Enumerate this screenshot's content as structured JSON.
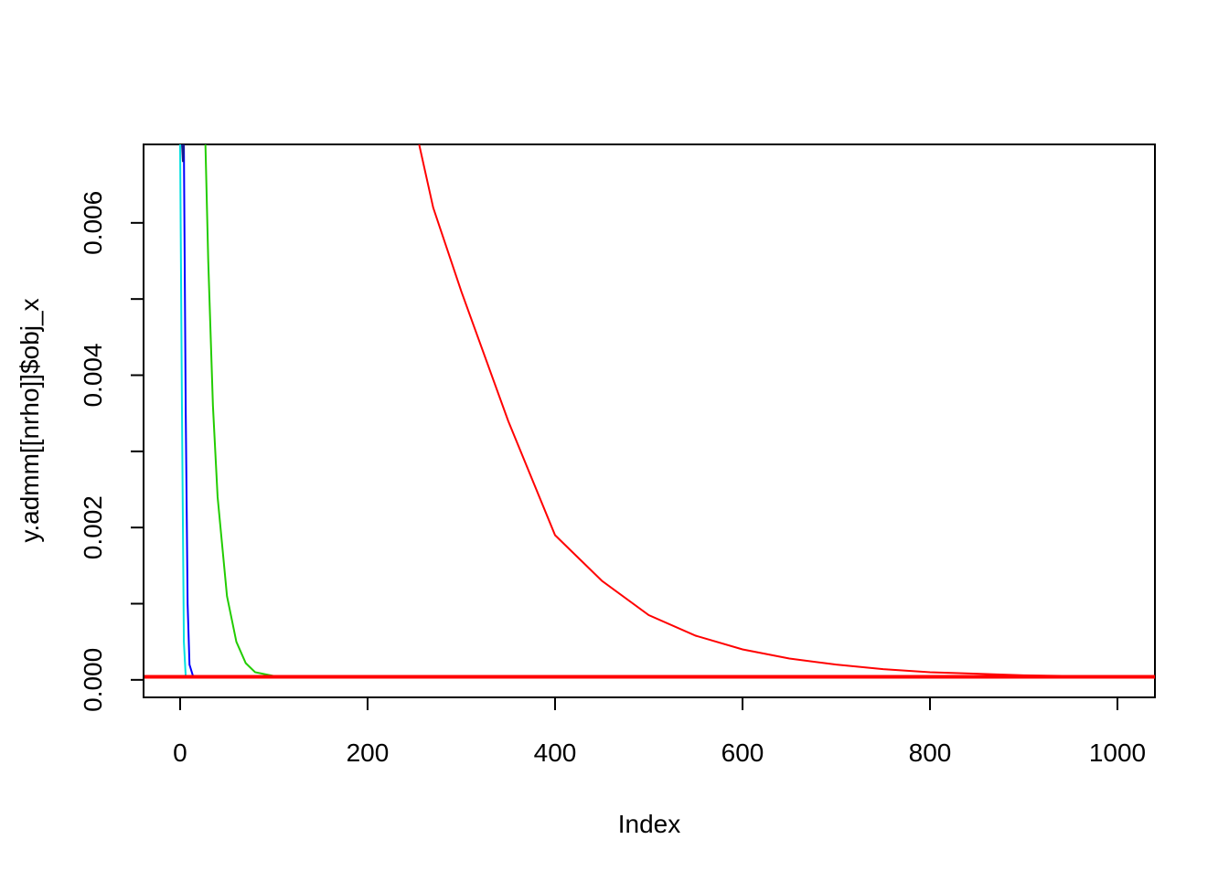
{
  "chart_data": {
    "type": "line",
    "x_label": "Index",
    "y_label": "y.admm[[nrho]]$obj_x",
    "xlim": [
      -39,
      1040
    ],
    "ylim": [
      -0.00023,
      0.00703
    ],
    "xticks": [
      0,
      200,
      400,
      600,
      800,
      1000
    ],
    "yticks": [
      {
        "value": 0,
        "label": "0.000"
      },
      {
        "value": 0.002,
        "label": "0.002"
      },
      {
        "value": 0.004,
        "label": "0.004"
      },
      {
        "value": 0.006,
        "label": "0.006"
      }
    ],
    "yminor_ticks": [
      0.001,
      0.003,
      0.005
    ],
    "series": [
      {
        "color": "#00e0e0",
        "x": [
          0,
          2,
          4,
          6
        ],
        "y": [
          0.00703,
          0.0035,
          0.0005,
          4e-05
        ]
      },
      {
        "color": "#0000ff",
        "x": [
          4,
          6,
          8,
          10,
          14
        ],
        "y": [
          0.00703,
          0.0035,
          0.001,
          0.0002,
          4e-05
        ]
      },
      {
        "color": "#1a1a8c",
        "x": [
          2,
          3,
          4
        ],
        "y": [
          0.00703,
          0.0068,
          0.00703
        ]
      },
      {
        "color": "#22cc00",
        "x": [
          27,
          30,
          35,
          40,
          50,
          60,
          70,
          80,
          100,
          110
        ],
        "y": [
          0.00703,
          0.0055,
          0.0036,
          0.0024,
          0.0011,
          0.0005,
          0.00022,
          0.0001,
          5e-05,
          4e-05
        ]
      },
      {
        "color": "#ff0000",
        "x": [
          255,
          270,
          300,
          350,
          400,
          450,
          500,
          550,
          600,
          650,
          700,
          750,
          800,
          850,
          900,
          950,
          1000,
          1040
        ],
        "y": [
          0.00703,
          0.0062,
          0.0051,
          0.0034,
          0.0019,
          0.0013,
          0.00085,
          0.00058,
          0.0004,
          0.00028,
          0.0002,
          0.00014,
          0.0001,
          8e-05,
          6e-05,
          5e-05,
          4e-05,
          4e-05
        ]
      }
    ],
    "hline": {
      "value": 4e-05,
      "color": "#ff0000"
    }
  }
}
